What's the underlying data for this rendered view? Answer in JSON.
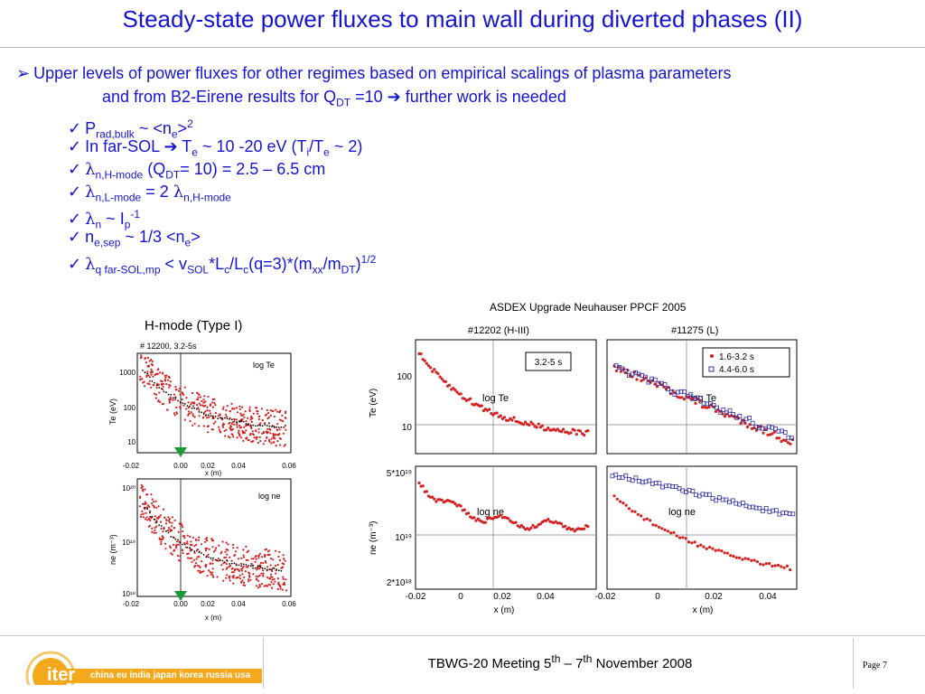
{
  "title": "Steady-state power fluxes to main wall during diverted phases (II)",
  "bullet": {
    "line1": "Upper levels of power fluxes for other regimes based on empirical scalings of plasma parameters",
    "line2_a": "and from B2-Eirene results for Q",
    "line2_sub": "DT",
    "line2_b": " =10 ",
    "line2_c": " further work is needed"
  },
  "checks": {
    "c1": {
      "a": "P",
      "sub": "rad,bulk",
      "b": " ~ <n",
      "sub2": "e",
      "c": ">",
      "sup": "2"
    },
    "c2": {
      "a": "In far-SOL ",
      "b": " T",
      "sub": "e",
      "c": " ~ 10 -20 eV (T",
      "sub2": "i",
      "d": "/T",
      "sub3": "e",
      "e": " ~ 2)"
    },
    "c3": {
      "lam": "λ",
      "sub": "n,H-mode",
      "a": " (Q",
      "sub2": "DT",
      "b": "= 10) = 2.5 – 6.5 cm"
    },
    "c4": {
      "lam": "λ",
      "sub": "n,L-mode",
      "a": " = 2 ",
      "lam2": "λ",
      "sub2": "n,H-mode"
    },
    "c5": {
      "lam": "λ",
      "sub": "n",
      "a": " ~ I",
      "sub2": "p",
      "sup": "-1"
    },
    "c6": {
      "a": "n",
      "sub": "e,sep",
      "b": " ~ 1/3 <n",
      "sub2": "e",
      "c": ">"
    },
    "c7": {
      "lam": "λ",
      "sub": "q far-SOL,mp",
      "a": " < v",
      "sub2": "SOL",
      "b": "*L",
      "sub3": "c",
      "c": "/L",
      "sub4": "c",
      "d": "(q=3)*(m",
      "sub5": "xx",
      "e": "/m",
      "sub6": "DT",
      "f": ")",
      "sup": "1/2"
    }
  },
  "source_note": "ASDEX Upgrade Neuhauser PPCF 2005",
  "hmode_label": "H-mode (Type I)",
  "left_plots": {
    "shot": "# 12200, 3.2-5s",
    "top_label": "log Te",
    "top_ylabel": "Te (eV)",
    "top_yticks": [
      "1000",
      "100",
      "10"
    ],
    "bottom_label": "log ne",
    "bottom_ylabel": "ne (m⁻³)",
    "bottom_yticks": [
      "10²⁰",
      "10¹⁹",
      "10¹⁸"
    ],
    "xticks": [
      "-0.02",
      "0.00",
      "0.02",
      "0.04",
      "0.06"
    ],
    "xlabel": "x (m)"
  },
  "right_plots": {
    "hiii_title": "#12202 (H-III)",
    "l_title": "#11275 (L)",
    "hiii_box": "3.2-5 s",
    "legend_red": "1.6-3.2 s",
    "legend_blue": "4.4-6.0 s",
    "te_label": "log Te",
    "ne_label": "log ne",
    "te_ylabel": "Te (eV)",
    "ne_ylabel": "ne (m⁻³)",
    "te_yticks": [
      "100",
      "10"
    ],
    "ne_yticks": [
      "5*10¹⁹",
      "10¹⁹",
      "2*10¹⁸"
    ],
    "xticks": [
      "-0.02",
      "0",
      "0.02",
      "0.04"
    ],
    "xlabel": "x (m)"
  },
  "footer": {
    "logo_word": "iter",
    "logo_countries": "china eu india japan korea russia usa",
    "meeting_a": "TBWG-20 Meeting 5",
    "meeting_sup1": "th",
    "meeting_b": " – 7",
    "meeting_sup2": "th",
    "meeting_c": " November 2008",
    "page": "Page 7"
  },
  "colors": {
    "title": "#1414d2",
    "red_marker": "#d42020",
    "blue_marker": "#3030a0",
    "logo": "#f4a81c"
  }
}
